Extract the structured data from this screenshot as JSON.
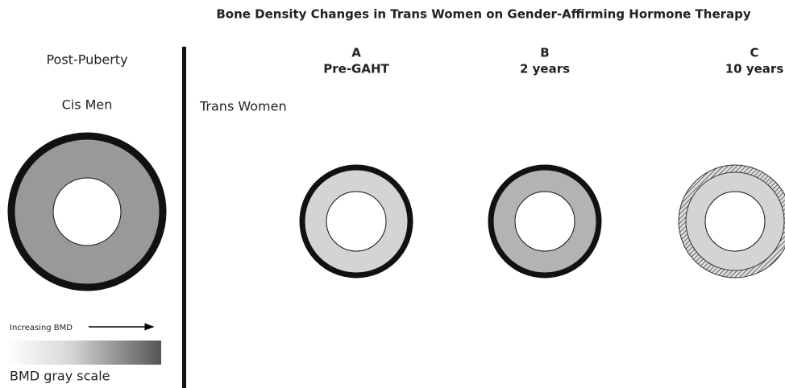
{
  "title": "Bone Density Changes in Trans Women on Gender-Affirming Hormone Therapy",
  "left": {
    "heading": "Post-Puberty",
    "group": "Cis Men"
  },
  "legend": {
    "arrow_label": "Increasing BMD",
    "scale_label": "BMD gray scale"
  },
  "right": {
    "group": "Trans Women",
    "panels": [
      {
        "letter": "A",
        "label": "Pre-GAHT"
      },
      {
        "letter": "B",
        "label": "2 years"
      },
      {
        "letter": "C",
        "label": "10 years"
      }
    ]
  }
}
